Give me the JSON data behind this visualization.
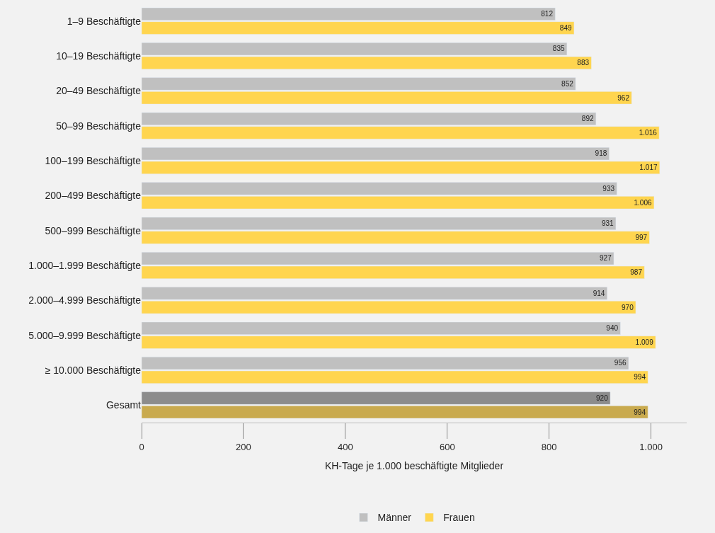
{
  "chart_data": {
    "type": "bar",
    "orientation": "horizontal",
    "xlabel": "KH-Tage je 1.000 beschäftigte Mitglieder",
    "categories": [
      "1–9 Beschäftigte",
      "10–19 Beschäftigte",
      "20–49 Beschäftigte",
      "50–99 Beschäftigte",
      "100–199 Beschäftigte",
      "200–499 Beschäftigte",
      "500–999 Beschäftigte",
      "1.000–1.999 Beschäftigte",
      "2.000–4.999 Beschäftigte",
      "5.000–9.999 Beschäftigte",
      "≥ 10.000 Beschäftigte",
      "Gesamt"
    ],
    "series": [
      {
        "name": "Männer",
        "colors": [
          "#c0c0c0",
          "#c0c0c0",
          "#c0c0c0",
          "#c0c0c0",
          "#c0c0c0",
          "#c0c0c0",
          "#c0c0c0",
          "#c0c0c0",
          "#c0c0c0",
          "#c0c0c0",
          "#c0c0c0",
          "#8c8c8c"
        ],
        "values": [
          812,
          835,
          852,
          892,
          918,
          933,
          931,
          927,
          914,
          940,
          956,
          920
        ],
        "value_labels": [
          "812",
          "835",
          "852",
          "892",
          "918",
          "933",
          "931",
          "927",
          "914",
          "940",
          "956",
          "920"
        ]
      },
      {
        "name": "Frauen",
        "colors": [
          "#ffd54f",
          "#ffd54f",
          "#ffd54f",
          "#ffd54f",
          "#ffd54f",
          "#ffd54f",
          "#ffd54f",
          "#ffd54f",
          "#ffd54f",
          "#ffd54f",
          "#ffd54f",
          "#c9aa4e"
        ],
        "values": [
          849,
          883,
          962,
          1016,
          1017,
          1006,
          997,
          987,
          970,
          1009,
          994,
          994
        ],
        "value_labels": [
          "849",
          "883",
          "962",
          "1.016",
          "1.017",
          "1.006",
          "997",
          "987",
          "970",
          "1.009",
          "994",
          "994"
        ]
      }
    ],
    "xlim": [
      0,
      1070
    ],
    "xticks": [
      0,
      200,
      400,
      600,
      800,
      {
        "value": 1000,
        "label": "1.000"
      }
    ],
    "grid": false,
    "legend": "bottom"
  }
}
